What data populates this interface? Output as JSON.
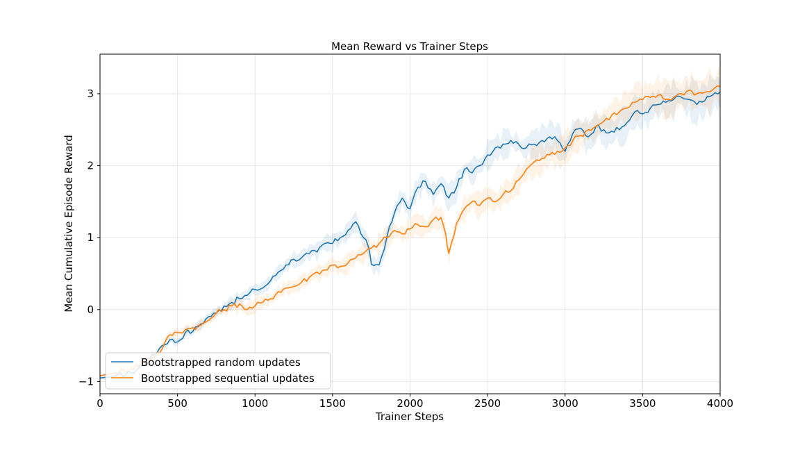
{
  "chart_data": {
    "type": "line",
    "title": "Mean Reward vs Trainer Steps",
    "xlabel": "Trainer Steps",
    "ylabel": "Mean Cumulative Episode Reward",
    "xlim": [
      0,
      4000
    ],
    "ylim": [
      -1.17,
      3.55
    ],
    "xticks": [
      0,
      500,
      1000,
      1500,
      2000,
      2500,
      3000,
      3500,
      4000
    ],
    "yticks": [
      -1,
      0,
      1,
      2,
      3
    ],
    "ytick_labels": [
      "−1",
      "0",
      "1",
      "2",
      "3"
    ],
    "grid": true,
    "legend_position": "lower-left",
    "series": [
      {
        "name": "Bootstrapped random updates",
        "color": "#1f77b4",
        "points": [
          [
            0,
            -0.95
          ],
          [
            100,
            -0.93
          ],
          [
            200,
            -0.88
          ],
          [
            300,
            -0.74
          ],
          [
            400,
            -0.5
          ],
          [
            450,
            -0.42
          ],
          [
            500,
            -0.45
          ],
          [
            550,
            -0.32
          ],
          [
            600,
            -0.3
          ],
          [
            650,
            -0.2
          ],
          [
            700,
            -0.1
          ],
          [
            750,
            -0.05
          ],
          [
            800,
            0.05
          ],
          [
            850,
            0.1
          ],
          [
            900,
            0.15
          ],
          [
            950,
            0.2
          ],
          [
            1000,
            0.28
          ],
          [
            1050,
            0.3
          ],
          [
            1100,
            0.4
          ],
          [
            1150,
            0.52
          ],
          [
            1200,
            0.62
          ],
          [
            1250,
            0.7
          ],
          [
            1300,
            0.72
          ],
          [
            1350,
            0.78
          ],
          [
            1400,
            0.8
          ],
          [
            1450,
            0.92
          ],
          [
            1500,
            0.92
          ],
          [
            1550,
            1.0
          ],
          [
            1600,
            1.1
          ],
          [
            1650,
            1.22
          ],
          [
            1700,
            1.0
          ],
          [
            1730,
            0.88
          ],
          [
            1750,
            0.63
          ],
          [
            1800,
            0.62
          ],
          [
            1850,
            1.0
          ],
          [
            1900,
            1.35
          ],
          [
            1950,
            1.55
          ],
          [
            2000,
            1.4
          ],
          [
            2050,
            1.7
          ],
          [
            2100,
            1.78
          ],
          [
            2150,
            1.6
          ],
          [
            2200,
            1.75
          ],
          [
            2250,
            1.55
          ],
          [
            2300,
            1.7
          ],
          [
            2350,
            1.95
          ],
          [
            2400,
            1.9
          ],
          [
            2450,
            2.0
          ],
          [
            2500,
            2.15
          ],
          [
            2550,
            2.25
          ],
          [
            2600,
            2.3
          ],
          [
            2650,
            2.35
          ],
          [
            2700,
            2.3
          ],
          [
            2750,
            2.25
          ],
          [
            2800,
            2.3
          ],
          [
            2850,
            2.35
          ],
          [
            2900,
            2.4
          ],
          [
            2950,
            2.35
          ],
          [
            3000,
            2.2
          ],
          [
            3050,
            2.45
          ],
          [
            3100,
            2.52
          ],
          [
            3150,
            2.4
          ],
          [
            3200,
            2.55
          ],
          [
            3250,
            2.5
          ],
          [
            3300,
            2.48
          ],
          [
            3350,
            2.5
          ],
          [
            3400,
            2.6
          ],
          [
            3450,
            2.75
          ],
          [
            3500,
            2.72
          ],
          [
            3550,
            2.8
          ],
          [
            3600,
            2.85
          ],
          [
            3650,
            2.88
          ],
          [
            3700,
            2.92
          ],
          [
            3750,
            2.95
          ],
          [
            3800,
            2.92
          ],
          [
            3850,
            2.85
          ],
          [
            3900,
            2.9
          ],
          [
            3950,
            2.98
          ],
          [
            4000,
            3.02
          ]
        ]
      },
      {
        "name": "Bootstrapped sequential updates",
        "color": "#ff7f0e",
        "points": [
          [
            0,
            -0.92
          ],
          [
            100,
            -0.88
          ],
          [
            200,
            -0.82
          ],
          [
            300,
            -0.72
          ],
          [
            400,
            -0.55
          ],
          [
            450,
            -0.35
          ],
          [
            500,
            -0.32
          ],
          [
            550,
            -0.28
          ],
          [
            600,
            -0.25
          ],
          [
            650,
            -0.22
          ],
          [
            700,
            -0.15
          ],
          [
            750,
            -0.05
          ],
          [
            800,
            0.0
          ],
          [
            850,
            0.05
          ],
          [
            900,
            0.08
          ],
          [
            950,
            0.0
          ],
          [
            1000,
            0.05
          ],
          [
            1050,
            0.1
          ],
          [
            1100,
            0.15
          ],
          [
            1150,
            0.25
          ],
          [
            1200,
            0.3
          ],
          [
            1250,
            0.32
          ],
          [
            1300,
            0.38
          ],
          [
            1350,
            0.45
          ],
          [
            1400,
            0.52
          ],
          [
            1450,
            0.55
          ],
          [
            1500,
            0.62
          ],
          [
            1550,
            0.6
          ],
          [
            1600,
            0.65
          ],
          [
            1650,
            0.72
          ],
          [
            1700,
            0.78
          ],
          [
            1750,
            0.85
          ],
          [
            1800,
            0.92
          ],
          [
            1850,
            1.0
          ],
          [
            1900,
            1.1
          ],
          [
            1950,
            1.05
          ],
          [
            2000,
            1.12
          ],
          [
            2050,
            1.18
          ],
          [
            2100,
            1.15
          ],
          [
            2150,
            1.25
          ],
          [
            2200,
            1.28
          ],
          [
            2230,
            1.05
          ],
          [
            2250,
            0.78
          ],
          [
            2300,
            1.2
          ],
          [
            2350,
            1.4
          ],
          [
            2400,
            1.5
          ],
          [
            2450,
            1.45
          ],
          [
            2500,
            1.55
          ],
          [
            2550,
            1.5
          ],
          [
            2600,
            1.6
          ],
          [
            2650,
            1.65
          ],
          [
            2700,
            1.8
          ],
          [
            2750,
            1.95
          ],
          [
            2800,
            2.05
          ],
          [
            2850,
            2.1
          ],
          [
            2900,
            2.15
          ],
          [
            2950,
            2.2
          ],
          [
            3000,
            2.25
          ],
          [
            3050,
            2.35
          ],
          [
            3100,
            2.42
          ],
          [
            3150,
            2.5
          ],
          [
            3200,
            2.55
          ],
          [
            3250,
            2.62
          ],
          [
            3300,
            2.7
          ],
          [
            3350,
            2.75
          ],
          [
            3400,
            2.8
          ],
          [
            3450,
            2.88
          ],
          [
            3500,
            2.92
          ],
          [
            3550,
            2.95
          ],
          [
            3600,
            2.98
          ],
          [
            3650,
            2.92
          ],
          [
            3700,
            2.95
          ],
          [
            3750,
            3.0
          ],
          [
            3800,
            3.05
          ],
          [
            3850,
            3.0
          ],
          [
            3900,
            3.02
          ],
          [
            3950,
            3.05
          ],
          [
            4000,
            3.1
          ]
        ]
      }
    ]
  }
}
